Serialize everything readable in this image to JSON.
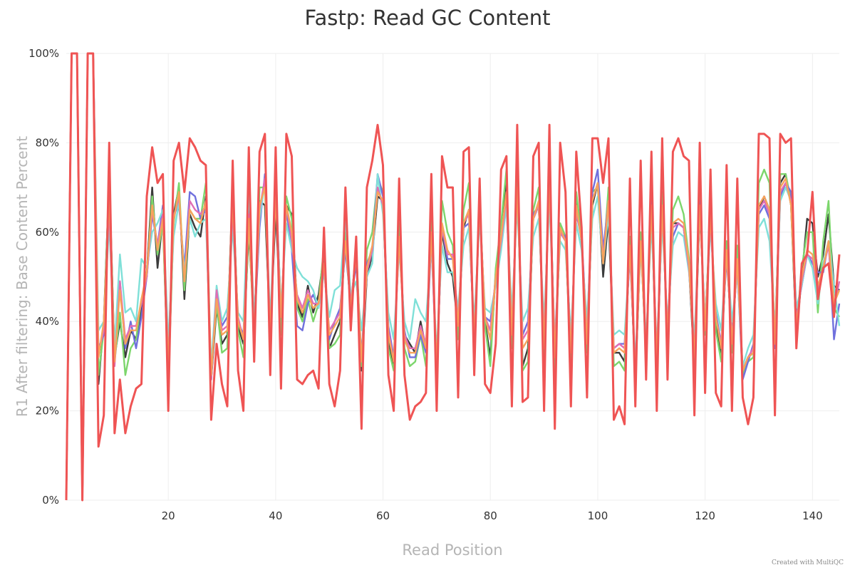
{
  "chart_data": {
    "type": "line",
    "title": "Fastp: Read GC Content",
    "xlabel": "Read Position",
    "ylabel": "R1 After filtering: Base Content Percent",
    "xlim": [
      1,
      145
    ],
    "ylim": [
      0,
      100
    ],
    "x_ticks": [
      "20",
      "40",
      "60",
      "80",
      "100",
      "120",
      "140"
    ],
    "x_tick_values": [
      20,
      40,
      60,
      80,
      100,
      120,
      140
    ],
    "y_ticks": [
      "0%",
      "20%",
      "40%",
      "60%",
      "80%",
      "100%"
    ],
    "y_tick_values": [
      0,
      20,
      40,
      60,
      80,
      100
    ],
    "grid": true,
    "legend": "none",
    "x": [
      1,
      2,
      3,
      4,
      5,
      6,
      7,
      8,
      9,
      10,
      11,
      12,
      13,
      14,
      15,
      16,
      17,
      18,
      19,
      20,
      21,
      22,
      23,
      24,
      25,
      26,
      27,
      28,
      29,
      30,
      31,
      32,
      33,
      34,
      35,
      36,
      37,
      38,
      39,
      40,
      41,
      42,
      43,
      44,
      45,
      46,
      47,
      48,
      49,
      50,
      51,
      52,
      53,
      54,
      55,
      56,
      57,
      58,
      59,
      60,
      61,
      62,
      63,
      64,
      65,
      66,
      67,
      68,
      69,
      70,
      71,
      72,
      73,
      74,
      75,
      76,
      77,
      78,
      79,
      80,
      81,
      82,
      83,
      84,
      85,
      86,
      87,
      88,
      89,
      90,
      91,
      92,
      93,
      94,
      95,
      96,
      97,
      98,
      99,
      100,
      101,
      102,
      103,
      104,
      105,
      106,
      107,
      108,
      109,
      110,
      111,
      112,
      113,
      114,
      115,
      116,
      117,
      118,
      119,
      120,
      121,
      122,
      123,
      124,
      125,
      126,
      127,
      128,
      129,
      130,
      131,
      132,
      133,
      134,
      135,
      136,
      137,
      138,
      139,
      140,
      141,
      142,
      143,
      144,
      145
    ],
    "series": [
      {
        "color": "#ef5454",
        "values": [
          0,
          100,
          100,
          0,
          100,
          100,
          12,
          19,
          80,
          15,
          27,
          15,
          21,
          25,
          26,
          68,
          79,
          71,
          73,
          20,
          76,
          80,
          69,
          81,
          79,
          76,
          75,
          18,
          35,
          26,
          21,
          76,
          29,
          20,
          79,
          31,
          78,
          82,
          28,
          79,
          25,
          82,
          77,
          27,
          26,
          28,
          29,
          25,
          61,
          26,
          21,
          29,
          70,
          38,
          59,
          16,
          70,
          76,
          84,
          75,
          28,
          20,
          72,
          28,
          18,
          21,
          22,
          24,
          73,
          20,
          77,
          70,
          70,
          23,
          78,
          79,
          28,
          72,
          26,
          24,
          35,
          74,
          77,
          21,
          84,
          22,
          23,
          77,
          80,
          20,
          84,
          16,
          80,
          69,
          21,
          78,
          61,
          23,
          81,
          81,
          71,
          81,
          18,
          21,
          17,
          72,
          21,
          76,
          27,
          78,
          20,
          81,
          27,
          78,
          81,
          77,
          76,
          19,
          80,
          24,
          74,
          24,
          21,
          75,
          20,
          72,
          23,
          17,
          23,
          82,
          82,
          81,
          19,
          82,
          80,
          81,
          34,
          53,
          55,
          69,
          45,
          52,
          53,
          41,
          55
        ]
      },
      {
        "color": "#3b3b3b",
        "values": [
          0,
          100,
          100,
          0,
          100,
          100,
          26,
          40,
          72,
          32,
          40,
          32,
          38,
          36,
          43,
          51,
          70,
          52,
          63,
          26,
          64,
          70,
          45,
          64,
          61,
          59,
          68,
          27,
          43,
          35,
          37,
          70,
          39,
          35,
          60,
          39,
          67,
          66,
          37,
          65,
          40,
          66,
          64,
          44,
          41,
          48,
          42,
          46,
          55,
          34,
          37,
          40,
          58,
          43,
          56,
          29,
          50,
          55,
          68,
          67,
          36,
          30,
          61,
          37,
          35,
          33,
          40,
          34,
          60,
          30,
          60,
          53,
          50,
          38,
          61,
          65,
          35,
          66,
          40,
          32,
          51,
          58,
          71,
          36,
          72,
          30,
          34,
          63,
          66,
          33,
          75,
          32,
          60,
          58,
          32,
          68,
          58,
          35,
          66,
          71,
          50,
          63,
          33,
          33,
          31,
          57,
          27,
          58,
          34,
          66,
          28,
          66,
          36,
          62,
          62,
          61,
          52,
          30,
          65,
          39,
          64,
          40,
          32,
          56,
          35,
          54,
          29,
          32,
          33,
          65,
          68,
          65,
          36,
          71,
          73,
          66,
          37,
          50,
          63,
          62,
          50,
          55,
          64,
          48,
          47
        ]
      },
      {
        "color": "#7cd66c",
        "values": [
          0,
          100,
          100,
          0,
          100,
          100,
          28,
          38,
          73,
          31,
          42,
          28,
          34,
          36,
          45,
          50,
          68,
          55,
          62,
          26,
          62,
          71,
          47,
          65,
          63,
          63,
          71,
          28,
          44,
          33,
          34,
          72,
          38,
          32,
          62,
          36,
          70,
          70,
          36,
          71,
          37,
          68,
          63,
          43,
          40,
          45,
          40,
          44,
          57,
          34,
          35,
          37,
          60,
          42,
          57,
          30,
          56,
          60,
          72,
          69,
          34,
          29,
          62,
          34,
          30,
          31,
          37,
          30,
          63,
          29,
          67,
          60,
          57,
          36,
          65,
          71,
          34,
          68,
          39,
          30,
          52,
          62,
          74,
          34,
          72,
          29,
          31,
          65,
          70,
          31,
          77,
          29,
          62,
          59,
          30,
          69,
          59,
          33,
          69,
          70,
          53,
          70,
          30,
          31,
          29,
          59,
          26,
          60,
          31,
          68,
          28,
          69,
          35,
          65,
          68,
          64,
          54,
          30,
          69,
          37,
          67,
          38,
          31,
          58,
          33,
          57,
          28,
          31,
          32,
          71,
          74,
          71,
          34,
          73,
          73,
          67,
          38,
          52,
          60,
          60,
          42,
          58,
          67,
          43,
          41
        ]
      },
      {
        "color": "#7070dd",
        "values": [
          0,
          100,
          100,
          0,
          100,
          100,
          34,
          37,
          65,
          32,
          49,
          34,
          40,
          34,
          41,
          50,
          64,
          57,
          66,
          32,
          64,
          66,
          52,
          69,
          68,
          63,
          65,
          27,
          46,
          39,
          41,
          64,
          40,
          37,
          66,
          38,
          61,
          73,
          35,
          72,
          42,
          65,
          56,
          39,
          38,
          44,
          46,
          43,
          53,
          36,
          40,
          43,
          56,
          44,
          53,
          32,
          53,
          56,
          73,
          68,
          39,
          32,
          58,
          38,
          32,
          32,
          37,
          33,
          58,
          29,
          61,
          54,
          54,
          40,
          61,
          62,
          37,
          66,
          41,
          40,
          49,
          57,
          66,
          39,
          69,
          37,
          40,
          64,
          66,
          37,
          70,
          34,
          60,
          59,
          35,
          64,
          59,
          37,
          69,
          74,
          56,
          67,
          34,
          35,
          35,
          55,
          29,
          58,
          33,
          67,
          32,
          64,
          39,
          59,
          62,
          61,
          52,
          33,
          67,
          38,
          62,
          42,
          35,
          54,
          37,
          52,
          27,
          31,
          35,
          64,
          66,
          63,
          34,
          68,
          71,
          69,
          42,
          48,
          55,
          53,
          51,
          51,
          58,
          36,
          44
        ]
      },
      {
        "color": "#7fe0d8",
        "values": [
          0,
          100,
          100,
          0,
          100,
          100,
          38,
          40,
          62,
          34,
          55,
          42,
          43,
          40,
          54,
          52,
          60,
          62,
          65,
          35,
          59,
          67,
          51,
          63,
          59,
          62,
          63,
          30,
          48,
          40,
          43,
          61,
          42,
          40,
          70,
          40,
          63,
          71,
          40,
          70,
          43,
          62,
          56,
          52,
          50,
          49,
          47,
          43,
          51,
          41,
          47,
          48,
          63,
          46,
          49,
          38,
          50,
          53,
          73,
          64,
          42,
          36,
          56,
          40,
          36,
          45,
          42,
          40,
          57,
          33,
          57,
          51,
          51,
          43,
          57,
          61,
          40,
          63,
          43,
          42,
          48,
          56,
          66,
          42,
          66,
          40,
          43,
          59,
          63,
          40,
          67,
          36,
          58,
          56,
          37,
          62,
          56,
          40,
          63,
          68,
          53,
          64,
          37,
          38,
          37,
          56,
          31,
          56,
          36,
          62,
          34,
          62,
          40,
          57,
          60,
          59,
          51,
          36,
          65,
          40,
          61,
          44,
          38,
          56,
          40,
          51,
          30,
          34,
          37,
          61,
          63,
          58,
          38,
          67,
          70,
          67,
          43,
          48,
          55,
          52,
          44,
          53,
          58,
          48,
          39
        ]
      },
      {
        "color": "#e06eb5",
        "values": [
          0,
          100,
          100,
          0,
          100,
          100,
          33,
          38,
          66,
          30,
          49,
          36,
          39,
          39,
          44,
          50,
          65,
          57,
          64,
          31,
          63,
          68,
          49,
          67,
          65,
          64,
          66,
          27,
          47,
          38,
          39,
          65,
          41,
          36,
          64,
          37,
          65,
          72,
          37,
          69,
          41,
          66,
          58,
          46,
          43,
          47,
          44,
          44,
          52,
          38,
          40,
          42,
          58,
          44,
          55,
          31,
          51,
          56,
          70,
          66,
          38,
          31,
          58,
          37,
          34,
          34,
          39,
          35,
          59,
          29,
          61,
          55,
          55,
          40,
          62,
          64,
          36,
          66,
          41,
          38,
          50,
          58,
          68,
          38,
          70,
          36,
          38,
          63,
          66,
          36,
          71,
          34,
          60,
          58,
          34,
          65,
          58,
          36,
          67,
          71,
          54,
          67,
          34,
          35,
          34,
          56,
          29,
          58,
          33,
          66,
          32,
          65,
          38,
          61,
          62,
          61,
          52,
          33,
          66,
          38,
          63,
          41,
          35,
          55,
          36,
          53,
          29,
          32,
          34,
          65,
          67,
          64,
          35,
          69,
          71,
          67,
          40,
          49,
          55,
          54,
          47,
          52,
          57,
          43,
          49
        ]
      },
      {
        "color": "#f7a35c",
        "values": [
          0,
          100,
          100,
          0,
          100,
          100,
          32,
          40,
          68,
          31,
          47,
          35,
          38,
          38,
          45,
          51,
          66,
          56,
          63,
          30,
          63,
          69,
          49,
          65,
          63,
          62,
          67,
          28,
          45,
          37,
          38,
          67,
          40,
          36,
          63,
          37,
          66,
          70,
          37,
          68,
          41,
          66,
          60,
          45,
          42,
          46,
          43,
          44,
          53,
          37,
          39,
          41,
          58,
          43,
          55,
          31,
          52,
          57,
          69,
          67,
          37,
          31,
          59,
          36,
          33,
          33,
          38,
          34,
          60,
          30,
          62,
          56,
          54,
          39,
          62,
          65,
          36,
          66,
          41,
          36,
          50,
          59,
          69,
          37,
          70,
          34,
          36,
          63,
          67,
          34,
          72,
          32,
          61,
          58,
          33,
          66,
          58,
          35,
          67,
          71,
          53,
          67,
          33,
          34,
          33,
          57,
          28,
          58,
          33,
          66,
          31,
          66,
          37,
          62,
          63,
          62,
          53,
          32,
          66,
          38,
          64,
          41,
          34,
          56,
          35,
          54,
          29,
          32,
          33,
          66,
          68,
          65,
          35,
          70,
          72,
          66,
          39,
          50,
          56,
          55,
          48,
          52,
          58,
          44,
          47
        ]
      }
    ]
  },
  "credit": "Created with MultiQC"
}
